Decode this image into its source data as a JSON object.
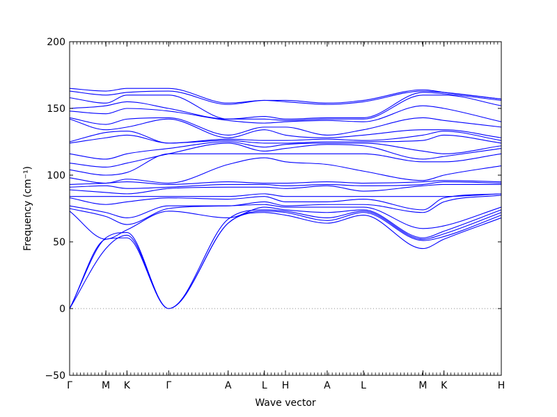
{
  "chart_data": {
    "type": "line",
    "title": "",
    "xlabel": "Wave vector",
    "ylabel": "Frequency (cm⁻¹)",
    "ylim": [
      -50,
      200
    ],
    "yticks": [
      -50,
      0,
      50,
      100,
      150,
      200
    ],
    "grid": false,
    "legend": "none",
    "line_color": "#0000ff",
    "zero_line_color": "#888888",
    "x_labels": [
      "Γ",
      "M",
      "K",
      "Γ",
      "A",
      "L",
      "H",
      "A",
      "L",
      "M",
      "K",
      "H"
    ],
    "x_positions": [
      0.0,
      1.0,
      1.58,
      2.73,
      4.37,
      5.37,
      5.95,
      7.1,
      8.1,
      9.74,
      10.32,
      11.9
    ],
    "series": [
      {
        "x": [
          0,
          1,
          1.58,
          2.73,
          4.37,
          5.37,
          5.95,
          7.1,
          8.1,
          9.74,
          10.32,
          11.9
        ],
        "y": [
          0,
          45,
          55,
          0,
          64,
          72,
          70,
          64,
          70,
          45,
          52,
          68
        ]
      },
      {
        "x": [
          0,
          1,
          1.58,
          2.73,
          4.37,
          5.37,
          5.95,
          7.1,
          8.1,
          9.74,
          10.32,
          11.9
        ],
        "y": [
          0,
          52,
          53,
          0,
          64,
          73,
          72,
          66,
          72,
          51,
          54,
          70
        ]
      },
      {
        "x": [
          0,
          1,
          1.58,
          2.73,
          4.37,
          5.37,
          5.95,
          7.1,
          8.1,
          9.74,
          10.32,
          11.9
        ],
        "y": [
          0,
          53,
          57,
          0,
          67,
          74,
          73,
          68,
          73,
          52,
          56,
          72
        ]
      },
      {
        "x": [
          0,
          1,
          1.58,
          2.73,
          4.37,
          5.37,
          5.95,
          7.1,
          8.1,
          9.74,
          10.32,
          11.9
        ],
        "y": [
          73,
          52,
          59,
          73,
          68,
          76,
          74,
          72,
          74,
          53,
          58,
          74
        ]
      },
      {
        "x": [
          0,
          1,
          1.58,
          2.73,
          4.37,
          5.37,
          5.95,
          7.1,
          8.1,
          9.74,
          10.32,
          11.9
        ],
        "y": [
          75,
          69,
          63,
          75,
          77,
          78,
          76,
          76,
          76,
          60,
          62,
          76
        ]
      },
      {
        "x": [
          0,
          1,
          1.58,
          2.73,
          4.37,
          5.37,
          5.95,
          7.1,
          8.1,
          9.74,
          10.32,
          11.9
        ],
        "y": [
          77,
          72,
          68,
          77,
          77,
          80,
          77,
          78,
          78,
          72,
          80,
          85
        ]
      },
      {
        "x": [
          0,
          1,
          1.58,
          2.73,
          4.37,
          5.37,
          5.95,
          7.1,
          8.1,
          9.74,
          10.32,
          11.9
        ],
        "y": [
          83,
          78,
          80,
          83,
          82,
          84,
          80,
          80,
          82,
          74,
          83,
          86
        ]
      },
      {
        "x": [
          0,
          1,
          1.58,
          2.73,
          4.37,
          5.37,
          5.95,
          7.1,
          8.1,
          9.74,
          10.32,
          11.9
        ],
        "y": [
          84,
          84,
          84,
          84,
          84,
          86,
          84,
          84,
          84,
          84,
          84,
          86
        ]
      },
      {
        "x": [
          0,
          1,
          1.58,
          2.73,
          4.37,
          5.37,
          5.95,
          7.1,
          8.1,
          9.74,
          10.32,
          11.9
        ],
        "y": [
          89,
          87,
          86,
          90,
          91,
          91,
          90,
          92,
          88,
          92,
          93,
          93
        ]
      },
      {
        "x": [
          0,
          1,
          1.58,
          2.73,
          4.37,
          5.37,
          5.95,
          7.1,
          8.1,
          9.74,
          10.32,
          11.9
        ],
        "y": [
          91,
          92,
          90,
          91,
          93,
          93,
          92,
          93,
          92,
          93,
          95,
          94
        ]
      },
      {
        "x": [
          0,
          1,
          1.58,
          2.73,
          4.37,
          5.37,
          5.95,
          7.1,
          8.1,
          9.74,
          10.32,
          11.9
        ],
        "y": [
          93,
          94,
          95,
          93,
          95,
          94,
          94,
          95,
          94,
          95,
          96,
          95
        ]
      },
      {
        "x": [
          0,
          1,
          1.58,
          2.73,
          4.37,
          5.37,
          5.95,
          7.1,
          8.1,
          9.74,
          10.32,
          11.9
        ],
        "y": [
          98,
          94,
          97,
          94,
          108,
          113,
          110,
          108,
          103,
          96,
          100,
          107
        ]
      },
      {
        "x": [
          0,
          1,
          1.58,
          2.73,
          4.37,
          5.37,
          5.95,
          7.1,
          8.1,
          9.74,
          10.32,
          11.9
        ],
        "y": [
          104,
          100,
          102,
          116,
          116,
          116,
          116,
          116,
          116,
          110,
          110,
          116
        ]
      },
      {
        "x": [
          0,
          1,
          1.58,
          2.73,
          4.37,
          5.37,
          5.95,
          7.1,
          8.1,
          9.74,
          10.32,
          11.9
        ],
        "y": [
          109,
          106,
          109,
          116,
          124,
          118,
          120,
          123,
          122,
          112,
          114,
          120
        ]
      },
      {
        "x": [
          0,
          1,
          1.58,
          2.73,
          4.37,
          5.37,
          5.95,
          7.1,
          8.1,
          9.74,
          10.32,
          11.9
        ],
        "y": [
          116,
          112,
          116,
          120,
          125,
          121,
          123,
          124,
          124,
          118,
          116,
          122
        ]
      },
      {
        "x": [
          0,
          1,
          1.58,
          2.73,
          4.37,
          5.37,
          5.95,
          7.1,
          8.1,
          9.74,
          10.32,
          11.9
        ],
        "y": [
          124,
          128,
          130,
          124,
          126,
          124,
          124,
          125,
          125,
          126,
          130,
          124
        ]
      },
      {
        "x": [
          0,
          1,
          1.58,
          2.73,
          4.37,
          5.37,
          5.95,
          7.1,
          8.1,
          9.74,
          10.32,
          11.9
        ],
        "y": [
          125,
          132,
          133,
          124,
          127,
          126,
          126,
          127,
          126,
          130,
          133,
          126
        ]
      },
      {
        "x": [
          0,
          1,
          1.58,
          2.73,
          4.37,
          5.37,
          5.95,
          7.1,
          8.1,
          9.74,
          10.32,
          11.9
        ],
        "y": [
          142,
          134,
          136,
          142,
          128,
          134,
          130,
          128,
          130,
          134,
          134,
          128
        ]
      },
      {
        "x": [
          0,
          1,
          1.58,
          2.73,
          4.37,
          5.37,
          5.95,
          7.1,
          8.1,
          9.74,
          10.32,
          11.9
        ],
        "y": [
          143,
          138,
          142,
          143,
          130,
          136,
          136,
          130,
          134,
          143,
          141,
          136
        ]
      },
      {
        "x": [
          0,
          1,
          1.58,
          2.73,
          4.37,
          5.37,
          5.95,
          7.1,
          8.1,
          9.74,
          10.32,
          11.9
        ],
        "y": [
          148,
          146,
          150,
          148,
          141,
          139,
          140,
          141,
          140,
          152,
          150,
          140
        ]
      },
      {
        "x": [
          0,
          1,
          1.58,
          2.73,
          4.37,
          5.37,
          5.95,
          7.1,
          8.1,
          9.74,
          10.32,
          11.9
        ],
        "y": [
          150,
          152,
          155,
          150,
          142,
          142,
          141,
          142,
          142,
          160,
          160,
          152
        ]
      },
      {
        "x": [
          0,
          1,
          1.58,
          2.73,
          4.37,
          5.37,
          5.95,
          7.1,
          8.1,
          9.74,
          10.32,
          11.9
        ],
        "y": [
          158,
          154,
          160,
          160,
          142,
          144,
          142,
          143,
          143,
          162,
          161,
          156
        ]
      },
      {
        "x": [
          0,
          1,
          1.58,
          2.73,
          4.37,
          5.37,
          5.95,
          7.1,
          8.1,
          9.74,
          10.32,
          11.9
        ],
        "y": [
          163,
          160,
          162,
          163,
          153,
          156,
          155,
          153,
          155,
          163,
          162,
          157
        ]
      },
      {
        "x": [
          0,
          1,
          1.58,
          2.73,
          4.37,
          5.37,
          5.95,
          7.1,
          8.1,
          9.74,
          10.32,
          11.9
        ],
        "y": [
          165,
          163,
          165,
          165,
          154,
          156,
          156,
          154,
          156,
          164,
          162,
          157
        ]
      }
    ]
  }
}
